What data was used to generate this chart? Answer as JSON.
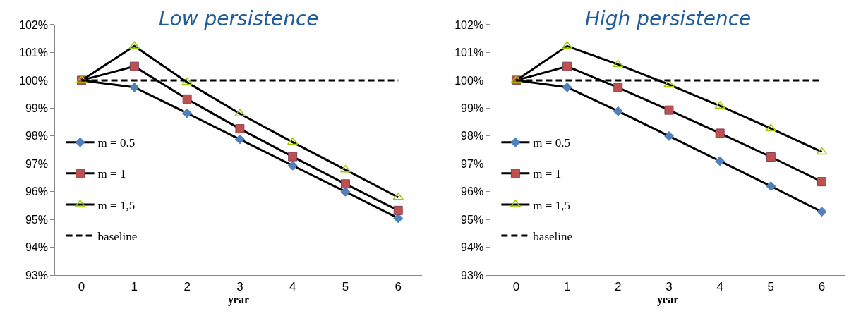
{
  "chart_data": [
    {
      "type": "line",
      "title": "Low persistence",
      "xlabel": "year",
      "categories": [
        "0",
        "1",
        "2",
        "3",
        "4",
        "5",
        "6"
      ],
      "ylim": [
        93,
        102
      ],
      "legend": "left",
      "yticks": [
        {
          "value": 93,
          "label": "93%"
        },
        {
          "value": 94,
          "label": "94%"
        },
        {
          "value": 95,
          "label": "95%"
        },
        {
          "value": 96,
          "label": "96%"
        },
        {
          "value": 97,
          "label": "97%"
        },
        {
          "value": 98,
          "label": "98%"
        },
        {
          "value": 99,
          "label": "99%"
        },
        {
          "value": 100,
          "label": "100%"
        },
        {
          "value": 101,
          "label": "101%"
        },
        {
          "value": 102,
          "label": "102%"
        }
      ],
      "series": [
        {
          "name": "m = 0.5",
          "color": "#4f81bd",
          "marker": "diamond",
          "line_style": "solid",
          "values": [
            100,
            99.75,
            98.82,
            97.88,
            96.94,
            96.0,
            95.05
          ]
        },
        {
          "name": "m = 1",
          "color": "#c0504d",
          "marker": "square",
          "line_style": "solid",
          "values": [
            100,
            100.5,
            99.33,
            98.26,
            97.26,
            96.28,
            95.33
          ]
        },
        {
          "name": "m = 1,5",
          "color": "#99cc00",
          "marker": "triangle",
          "line_style": "solid",
          "values": [
            100,
            101.23,
            99.93,
            98.8,
            97.78,
            96.79,
            95.8
          ]
        },
        {
          "name": "baseline",
          "color": "#000000",
          "marker": "none",
          "line_style": "dashed",
          "values": [
            100,
            100,
            100,
            100,
            100,
            100,
            100
          ]
        }
      ]
    },
    {
      "type": "line",
      "title": "High persistence",
      "xlabel": "year",
      "categories": [
        "0",
        "1",
        "2",
        "3",
        "4",
        "5",
        "6"
      ],
      "ylim": [
        93,
        102
      ],
      "legend": "left",
      "yticks": [
        {
          "value": 93,
          "label": "93%"
        },
        {
          "value": 94,
          "label": "94%"
        },
        {
          "value": 95,
          "label": "95%"
        },
        {
          "value": 96,
          "label": "96%"
        },
        {
          "value": 97,
          "label": "97%"
        },
        {
          "value": 98,
          "label": "98%"
        },
        {
          "value": 99,
          "label": "99%"
        },
        {
          "value": 100,
          "label": "100%"
        },
        {
          "value": 101,
          "label": "101%"
        },
        {
          "value": 102,
          "label": "102%"
        }
      ],
      "series": [
        {
          "name": "m = 0.5",
          "color": "#4f81bd",
          "marker": "diamond",
          "line_style": "solid",
          "values": [
            100,
            99.75,
            98.89,
            98.0,
            97.1,
            96.2,
            95.28
          ]
        },
        {
          "name": "m = 1",
          "color": "#c0504d",
          "marker": "square",
          "line_style": "solid",
          "values": [
            100,
            100.5,
            99.74,
            98.93,
            98.1,
            97.25,
            96.36
          ]
        },
        {
          "name": "m = 1,5",
          "color": "#99cc00",
          "marker": "triangle",
          "line_style": "solid",
          "values": [
            100,
            101.23,
            100.57,
            99.85,
            99.08,
            98.27,
            97.43
          ]
        },
        {
          "name": "baseline",
          "color": "#000000",
          "marker": "none",
          "line_style": "dashed",
          "values": [
            100,
            100,
            100,
            100,
            100,
            100,
            100
          ]
        }
      ]
    }
  ]
}
